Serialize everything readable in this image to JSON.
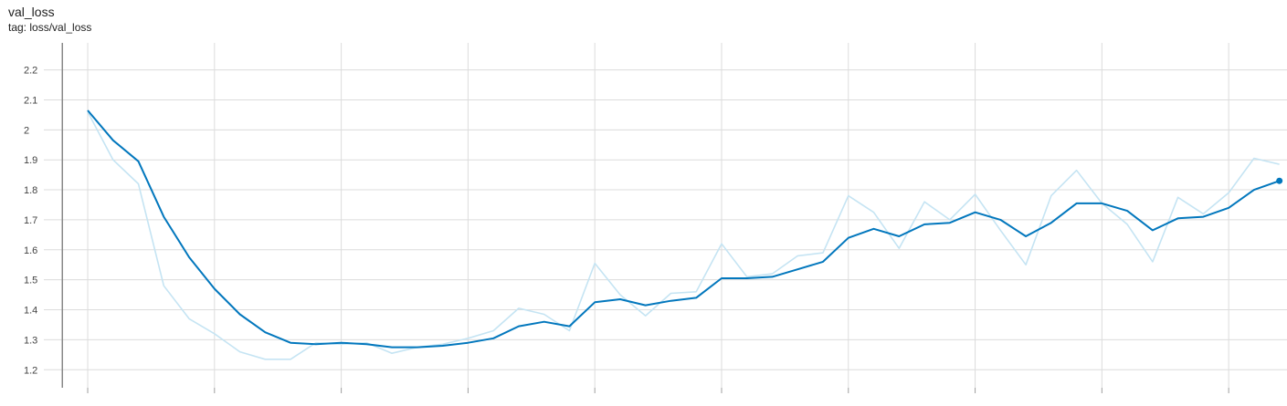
{
  "header": {
    "title": "val_loss",
    "subtitle": "tag: loss/val_loss"
  },
  "colors": {
    "smoothed": "#0277bd",
    "raw": "#c5e4f3",
    "grid": "#dcdcdc",
    "axis": "#9e9e9e"
  },
  "chart_data": {
    "type": "line",
    "title": "val_loss",
    "ylim": [
      1.14,
      2.29
    ],
    "xlim": [
      -1.73,
      47.3
    ],
    "y_ticks": [
      "1.2",
      "1.3",
      "1.4",
      "1.5",
      "1.6",
      "1.7",
      "1.8",
      "1.9",
      "2",
      "2.1",
      "2.2"
    ],
    "x_tick_values": [
      0,
      5,
      10,
      15,
      20,
      25,
      30,
      35,
      40,
      45
    ],
    "grid": true,
    "series": [
      {
        "smoothing": "raw",
        "x": [
          0,
          1,
          2,
          3,
          4,
          5,
          6,
          7,
          8,
          9,
          10,
          11,
          12,
          13,
          14,
          15,
          16,
          17,
          18,
          19,
          20,
          21,
          22,
          23,
          24,
          25,
          26,
          27,
          28,
          29,
          30,
          31,
          32,
          33,
          34,
          35,
          36,
          37,
          38,
          39,
          40,
          41,
          42,
          43,
          44,
          45,
          46,
          47
        ],
        "y": [
          2.06,
          1.9,
          1.82,
          1.48,
          1.37,
          1.32,
          1.26,
          1.235,
          1.235,
          1.29,
          1.285,
          1.29,
          1.255,
          1.275,
          1.285,
          1.305,
          1.33,
          1.405,
          1.385,
          1.33,
          1.555,
          1.45,
          1.38,
          1.455,
          1.46,
          1.62,
          1.51,
          1.52,
          1.58,
          1.59,
          1.78,
          1.725,
          1.605,
          1.76,
          1.7,
          1.785,
          1.665,
          1.55,
          1.78,
          1.865,
          1.755,
          1.685,
          1.56,
          1.775,
          1.72,
          1.79,
          1.905,
          1.885
        ]
      },
      {
        "smoothing": "smoothed",
        "x": [
          0,
          1,
          2,
          3,
          4,
          5,
          6,
          7,
          8,
          9,
          10,
          11,
          12,
          13,
          14,
          15,
          16,
          17,
          18,
          19,
          20,
          21,
          22,
          23,
          24,
          25,
          26,
          27,
          28,
          29,
          30,
          31,
          32,
          33,
          34,
          35,
          36,
          37,
          38,
          39,
          40,
          41,
          42,
          43,
          44,
          45,
          46,
          47
        ],
        "y": [
          2.065,
          1.965,
          1.895,
          1.71,
          1.575,
          1.47,
          1.385,
          1.325,
          1.29,
          1.285,
          1.29,
          1.285,
          1.275,
          1.275,
          1.28,
          1.29,
          1.305,
          1.345,
          1.36,
          1.345,
          1.425,
          1.435,
          1.415,
          1.43,
          1.44,
          1.505,
          1.505,
          1.51,
          1.535,
          1.56,
          1.64,
          1.67,
          1.645,
          1.685,
          1.69,
          1.725,
          1.7,
          1.645,
          1.69,
          1.755,
          1.755,
          1.73,
          1.665,
          1.705,
          1.71,
          1.74,
          1.8,
          1.83
        ]
      }
    ]
  }
}
